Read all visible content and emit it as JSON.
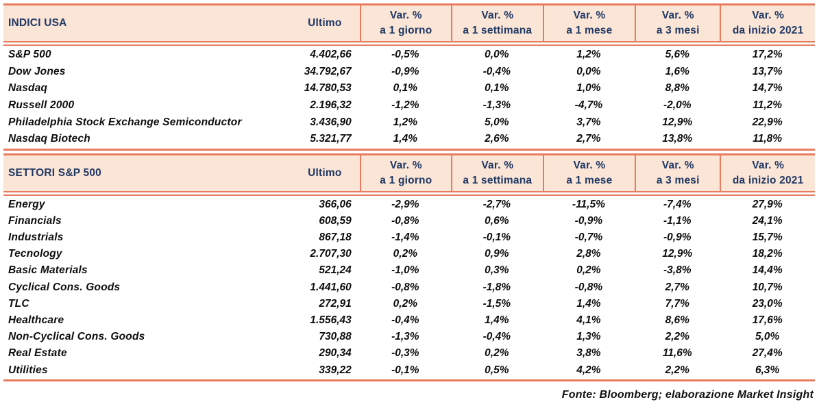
{
  "palette": {
    "accent": "#e87a5e",
    "header_bg": "#fbe5d6",
    "header_text": "#1f3864",
    "data_text": "#0d0d0d"
  },
  "sections": [
    {
      "title": "INDICI USA",
      "ultimo_label": "Ultimo",
      "var_columns": [
        {
          "line1": "Var. %",
          "line2": "a 1 giorno"
        },
        {
          "line1": "Var. %",
          "line2": "a 1 settimana"
        },
        {
          "line1": "Var. %",
          "line2": "a 1 mese"
        },
        {
          "line1": "Var. %",
          "line2": "a 3 mesi"
        },
        {
          "line1": "Var. %",
          "line2": "da inizio 2021"
        }
      ],
      "rows": [
        {
          "name": "S&P 500",
          "ultimo": "4.402,66",
          "values": [
            "-0,5%",
            "0,0%",
            "1,2%",
            "5,6%",
            "17,2%"
          ]
        },
        {
          "name": "Dow Jones",
          "ultimo": "34.792,67",
          "values": [
            "-0,9%",
            "-0,4%",
            "0,0%",
            "1,6%",
            "13,7%"
          ]
        },
        {
          "name": "Nasdaq",
          "ultimo": "14.780,53",
          "values": [
            "0,1%",
            "0,1%",
            "1,0%",
            "8,8%",
            "14,7%"
          ]
        },
        {
          "name": "Russell 2000",
          "ultimo": "2.196,32",
          "values": [
            "-1,2%",
            "-1,3%",
            "-4,7%",
            "-2,0%",
            "11,2%"
          ]
        },
        {
          "name": "Philadelphia Stock Exchange Semiconductor",
          "ultimo": "3.436,90",
          "values": [
            "1,2%",
            "5,0%",
            "3,7%",
            "12,9%",
            "22,9%"
          ]
        },
        {
          "name": "Nasdaq Biotech",
          "ultimo": "5.321,77",
          "values": [
            "1,4%",
            "2,6%",
            "2,7%",
            "13,8%",
            "11,8%"
          ]
        }
      ]
    },
    {
      "title": "SETTORI S&P 500",
      "ultimo_label": "Ultimo",
      "var_columns": [
        {
          "line1": "Var. %",
          "line2": "a 1 giorno"
        },
        {
          "line1": "Var. %",
          "line2": "a 1 settimana"
        },
        {
          "line1": "Var. %",
          "line2": "a 1 mese"
        },
        {
          "line1": "Var. %",
          "line2": "a 3 mesi"
        },
        {
          "line1": "Var. %",
          "line2": "da inizio 2021"
        }
      ],
      "rows": [
        {
          "name": "Energy",
          "ultimo": "366,06",
          "values": [
            "-2,9%",
            "-2,7%",
            "-11,5%",
            "-7,4%",
            "27,9%"
          ]
        },
        {
          "name": "Financials",
          "ultimo": "608,59",
          "values": [
            "-0,8%",
            "0,6%",
            "-0,9%",
            "-1,1%",
            "24,1%"
          ]
        },
        {
          "name": "Industrials",
          "ultimo": "867,18",
          "values": [
            "-1,4%",
            "-0,1%",
            "-0,7%",
            "-0,9%",
            "15,7%"
          ]
        },
        {
          "name": "Tecnology",
          "ultimo": "2.707,30",
          "values": [
            "0,2%",
            "0,9%",
            "2,8%",
            "12,9%",
            "18,2%"
          ]
        },
        {
          "name": "Basic Materials",
          "ultimo": "521,24",
          "values": [
            "-1,0%",
            "0,3%",
            "0,2%",
            "-3,8%",
            "14,4%"
          ]
        },
        {
          "name": "Cyclical Cons. Goods",
          "ultimo": "1.441,60",
          "values": [
            "-0,8%",
            "-1,8%",
            "-0,8%",
            "2,7%",
            "10,7%"
          ]
        },
        {
          "name": "TLC",
          "ultimo": "272,91",
          "values": [
            "0,2%",
            "-1,5%",
            "1,4%",
            "7,7%",
            "23,0%"
          ]
        },
        {
          "name": "Healthcare",
          "ultimo": "1.556,43",
          "values": [
            "-0,4%",
            "1,4%",
            "4,1%",
            "8,6%",
            "17,6%"
          ]
        },
        {
          "name": "Non-Cyclical Cons. Goods",
          "ultimo": "730,88",
          "values": [
            "-1,3%",
            "-0,4%",
            "1,3%",
            "2,2%",
            "5,0%"
          ]
        },
        {
          "name": "Real Estate",
          "ultimo": "290,34",
          "values": [
            "-0,3%",
            "0,2%",
            "3,8%",
            "11,6%",
            "27,4%"
          ]
        },
        {
          "name": "Utilities",
          "ultimo": "339,22",
          "values": [
            "-0,1%",
            "0,5%",
            "4,2%",
            "2,2%",
            "6,3%"
          ]
        }
      ]
    }
  ],
  "footer": {
    "source_note": "Fonte: Bloomberg; elaborazione Market Insight"
  }
}
